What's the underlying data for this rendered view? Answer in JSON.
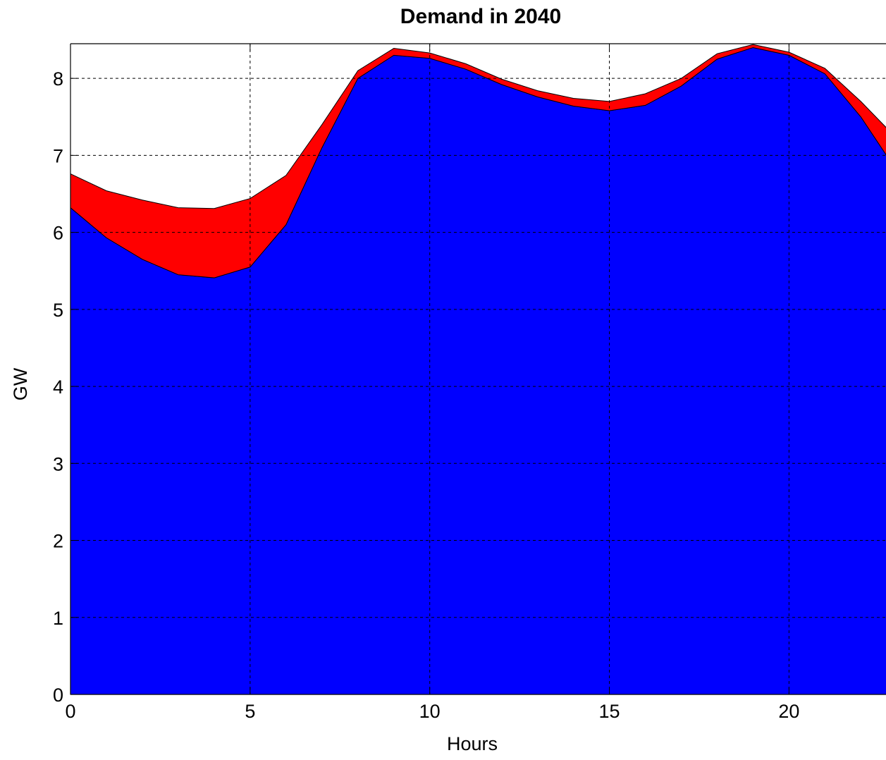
{
  "chart_data": {
    "type": "area",
    "title": "Demand in 2040",
    "xlabel": "Hours",
    "ylabel": "GW",
    "xlim": [
      0,
      22.7
    ],
    "ylim": [
      0,
      8.45
    ],
    "xticks": [
      0,
      5,
      10,
      15,
      20
    ],
    "yticks": [
      0,
      1,
      2,
      3,
      4,
      5,
      6,
      7,
      8
    ],
    "grid": true,
    "stacked": true,
    "x": [
      0,
      1,
      2,
      3,
      4,
      5,
      6,
      7,
      8,
      9,
      10,
      11,
      12,
      13,
      14,
      15,
      16,
      17,
      18,
      19,
      20,
      21,
      22,
      23
    ],
    "series": [
      {
        "color": "#0000ff",
        "values": [
          6.32,
          5.93,
          5.65,
          5.45,
          5.41,
          5.55,
          6.1,
          7.1,
          8.0,
          8.3,
          8.26,
          8.12,
          7.92,
          7.76,
          7.64,
          7.58,
          7.65,
          7.9,
          8.25,
          8.4,
          8.3,
          8.06,
          7.5,
          6.8
        ]
      },
      {
        "color": "#ff0000",
        "values": [
          0.44,
          0.61,
          0.77,
          0.87,
          0.9,
          0.89,
          0.64,
          0.3,
          0.1,
          0.09,
          0.07,
          0.07,
          0.07,
          0.08,
          0.1,
          0.12,
          0.15,
          0.1,
          0.07,
          0.04,
          0.04,
          0.07,
          0.2,
          0.42
        ]
      }
    ]
  }
}
